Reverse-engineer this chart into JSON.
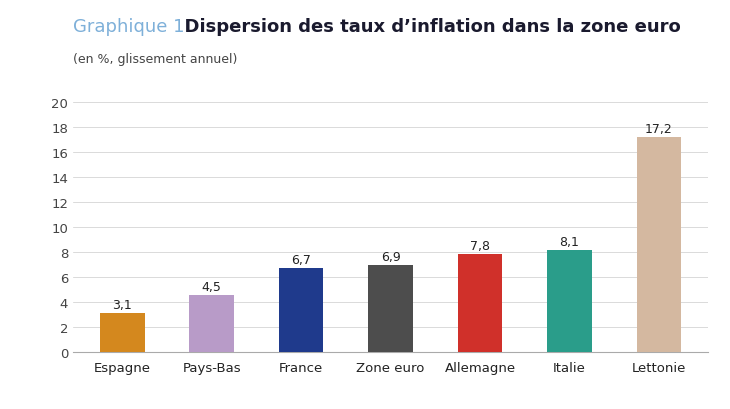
{
  "title_part1": "Graphique 1",
  "title_part2": "  Dispersion des taux d’inflation dans la zone euro",
  "subtitle": "(en %, glissement annuel)",
  "categories": [
    "Espagne",
    "Pays-Bas",
    "France",
    "Zone euro",
    "Allemagne",
    "Italie",
    "Lettonie"
  ],
  "values": [
    3.1,
    4.5,
    6.7,
    6.9,
    7.8,
    8.1,
    17.2
  ],
  "bar_colors": [
    "#D4881E",
    "#B89BC8",
    "#1F3A8C",
    "#4D4D4D",
    "#D0302A",
    "#2A9D8A",
    "#D4B8A0"
  ],
  "title_color1": "#7EB0D9",
  "title_color2": "#1A1A2E",
  "subtitle_color": "#444444",
  "ylim": [
    0,
    20
  ],
  "yticks": [
    0,
    2,
    4,
    6,
    8,
    10,
    12,
    14,
    16,
    18,
    20
  ],
  "value_label_color": "#222222",
  "background_color": "#FFFFFF",
  "bar_width": 0.5
}
